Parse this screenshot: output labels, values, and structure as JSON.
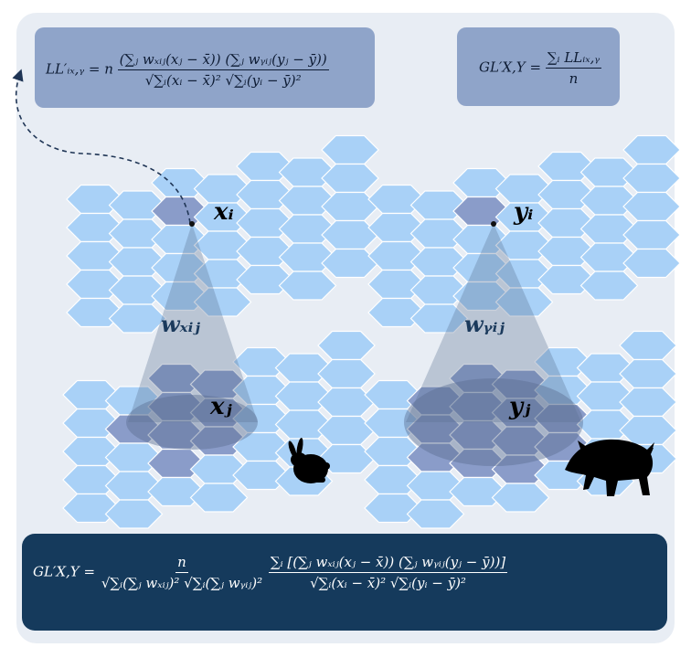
{
  "formulas": {
    "local": {
      "lhs": "LL′ᵢₓ,ᵧ = n",
      "numerator": "(∑ⱼ wₓᵢⱼ(xⱼ − x̄)) (∑ⱼ wᵧᵢⱼ(yⱼ − ȳ))",
      "denominator": "√∑ᵢ(xᵢ − x̄)² √∑ᵢ(yᵢ − ȳ)²"
    },
    "global_small": {
      "lhs": "GL′X,Y =",
      "numerator": "∑ᵢ LLᵢₓ,ᵧ",
      "denominator": "n"
    },
    "global_full": {
      "lhs": "GL′X,Y =",
      "frac1_numerator": "n",
      "frac1_denominator": "√∑ᵢ(∑ⱼ wₓᵢⱼ)² √∑ᵢ(∑ⱼ wᵧᵢⱼ)²",
      "frac2_numerator": "∑ᵢ [(∑ⱼ wₓᵢⱼ(xⱼ − x̄)) (∑ⱼ wᵧᵢⱼ(yⱼ − ȳ))]",
      "frac2_denominator": "√∑ᵢ(xᵢ − x̄)² √∑ᵢ(yᵢ − ȳ)²"
    }
  },
  "labels": {
    "x_i": "xᵢ",
    "x_j": "xⱼ",
    "w_x": "wₓᵢⱼ",
    "y_i": "yᵢ",
    "y_j": "yⱼ",
    "w_y": "wᵧᵢⱼ"
  },
  "icons": {
    "left_animal": "rabbit-icon",
    "right_animal": "boar-icon"
  },
  "colors": {
    "hex_fill": "#a9d1f7",
    "hex_highlight": "#8a9cc9",
    "cone": "#5a6f93",
    "dark_box": "#153a5c",
    "label_box": "#8fa4c9"
  }
}
